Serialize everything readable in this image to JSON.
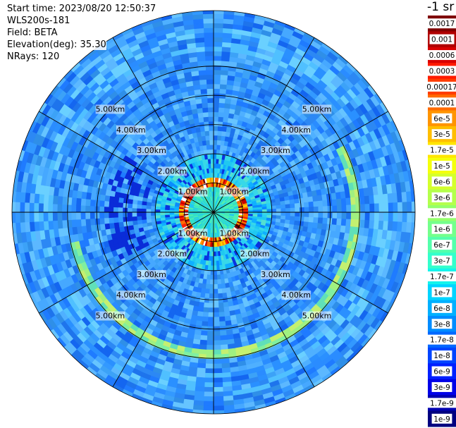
{
  "header": {
    "start_time": "Start time: 2023/08/20 12:50:37",
    "site": "WLS200s-181",
    "field": "Field: BETA",
    "elevation": "Elevation(deg): 35.30",
    "nrays": "NRays: 120"
  },
  "chart_data": {
    "type": "heatmap",
    "projection": "polar-ppi",
    "range_rings_km": [
      1,
      2,
      3,
      4,
      5
    ],
    "range_ring_labels": [
      "1.00km",
      "2.00km",
      "3.00km",
      "4.00km",
      "5.00km"
    ],
    "max_range_km": 6.9,
    "azimuth_spokes_deg": [
      0,
      30,
      60,
      90,
      120,
      150,
      180,
      210,
      240,
      270,
      300,
      330
    ],
    "colorbar": {
      "unit": "-1 sr",
      "tick_labels": [
        "0.0017",
        "0.001",
        "0.0006",
        "0.0003",
        "0.00017",
        "0.0001",
        "6e-5",
        "3e-5",
        "1.7e-5",
        "1e-5",
        "6e-6",
        "3e-6",
        "1.7e-6",
        "1e-6",
        "6e-7",
        "3e-7",
        "1.7e-7",
        "1e-7",
        "6e-8",
        "3e-8",
        "1.7e-8",
        "1e-8",
        "6e-9",
        "3e-9",
        "1.7e-9",
        "1e-9"
      ],
      "colors": [
        "#7f0000",
        "#b00000",
        "#d80000",
        "#ff1a00",
        "#ff3c00",
        "#ff6a00",
        "#ff9400",
        "#ffbe00",
        "#ffe600",
        "#f4ff0c",
        "#d4ff2c",
        "#b4ff4c",
        "#94ff6c",
        "#74ff8c",
        "#54ffac",
        "#34ffcc",
        "#14f4ec",
        "#00d4ff",
        "#00b0ff",
        "#008cff",
        "#0068ff",
        "#0044ff",
        "#0020ff",
        "#0000e8",
        "#0000b0",
        "#000080"
      ]
    },
    "features": [
      {
        "name": "near-range ring",
        "range_km": 0.9,
        "value": "3e-5 to 0.0006"
      },
      {
        "name": "outer arc",
        "range_km": 4.8,
        "value": "1.7e-6 to 6e-7"
      },
      {
        "name": "background",
        "value": "1e-7 to 1.7e-8"
      }
    ]
  }
}
